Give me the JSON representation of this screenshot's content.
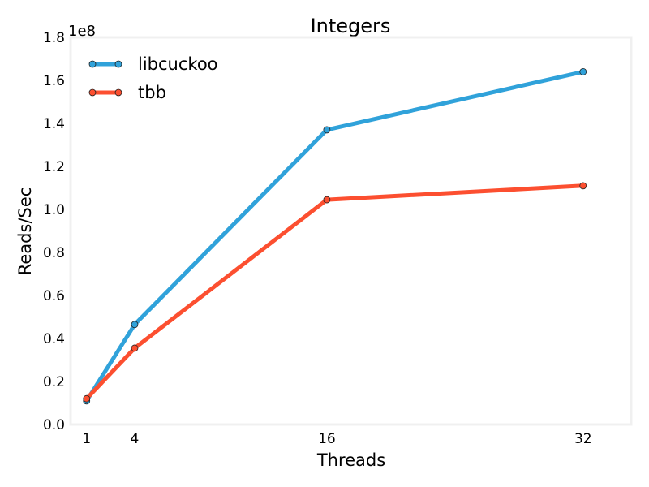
{
  "chart_data": {
    "type": "line",
    "title": "Integers",
    "xlabel": "Threads",
    "ylabel": "Reads/Sec",
    "y_offset_label": "1e8",
    "x": [
      1,
      4,
      16,
      32
    ],
    "x_ticks": [
      "1",
      "4",
      "16",
      "32"
    ],
    "xlim": [
      0,
      35
    ],
    "ylim": [
      0,
      1.8
    ],
    "y_ticks": [
      "0.0",
      "0.2",
      "0.4",
      "0.6",
      "0.8",
      "1.0",
      "1.2",
      "1.4",
      "1.6",
      "1.8"
    ],
    "y_tick_values": [
      0,
      0.2,
      0.4,
      0.6,
      0.8,
      1.0,
      1.2,
      1.4,
      1.6,
      1.8
    ],
    "grid": false,
    "legend_position": "top-left",
    "series": [
      {
        "name": "libcuckoo",
        "color": "#30a2da",
        "values": [
          0.11,
          0.465,
          1.37,
          1.64
        ]
      },
      {
        "name": "tbb",
        "color": "#fc4f30",
        "values": [
          0.12,
          0.355,
          1.045,
          1.11
        ]
      }
    ]
  }
}
